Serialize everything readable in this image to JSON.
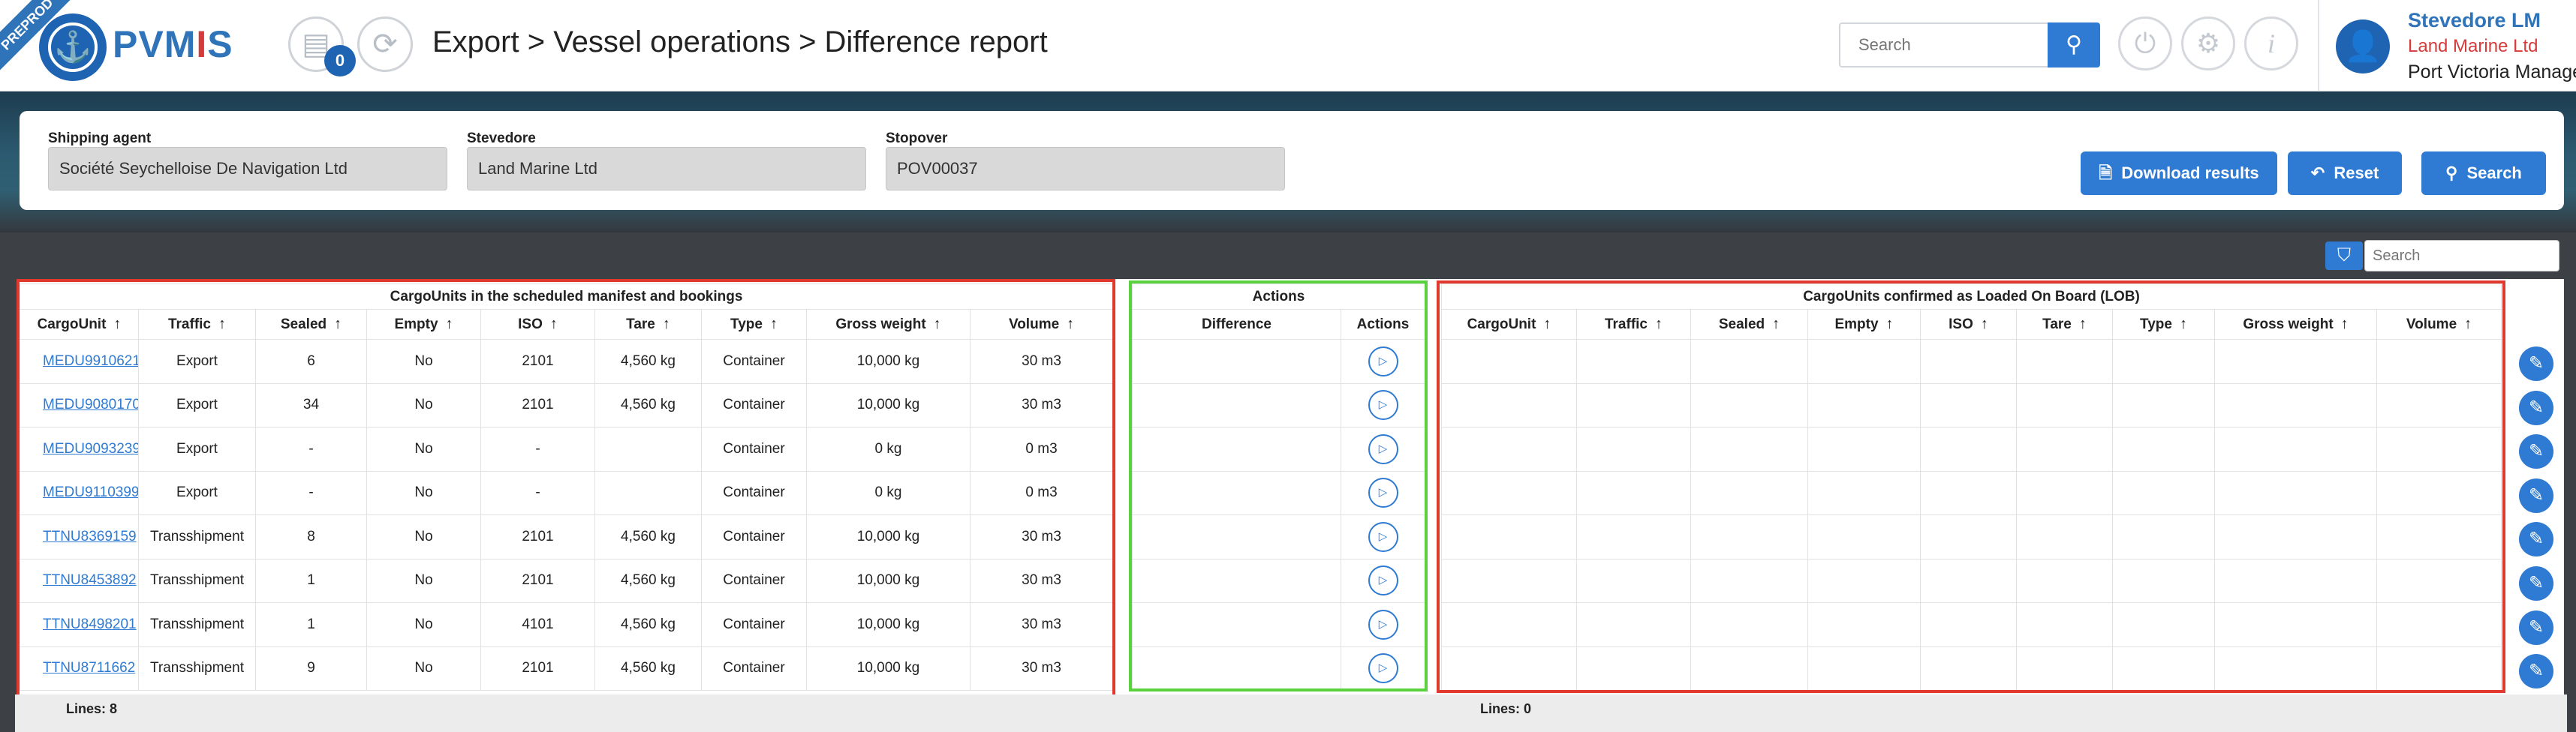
{
  "header": {
    "env_ribbon": "PREPROD",
    "brand_pre": "PVM",
    "brand_mid": "I",
    "brand_post": "S",
    "notification_count": "0",
    "breadcrumb": "Export > Vessel operations > Difference report",
    "search_placeholder": "Search",
    "user_name": "Stevedore LM",
    "user_company": "Land Marine Ltd",
    "user_org": "Port Victoria Managem"
  },
  "filters": {
    "shipping_agent_label": "Shipping agent",
    "shipping_agent_value": "Société Seychelloise De Navigation Ltd",
    "stevedore_label": "Stevedore",
    "stevedore_value": "Land Marine Ltd",
    "stopover_label": "Stopover",
    "stopover_value": "POV00037",
    "download_label": "Download results",
    "reset_label": "Reset",
    "search_label": "Search"
  },
  "table_search_placeholder": "Search",
  "left_table": {
    "group_title": "CargoUnits in the scheduled manifest and bookings",
    "columns": [
      "CargoUnit",
      "Traffic",
      "Sealed",
      "Empty",
      "ISO",
      "Tare",
      "Type",
      "Gross weight",
      "Volume"
    ],
    "rows": [
      [
        "MEDU9910621",
        "Export",
        "6",
        "No",
        "2101",
        "4,560 kg",
        "Container",
        "10,000 kg",
        "30 m3"
      ],
      [
        "MEDU9080170",
        "Export",
        "34",
        "No",
        "2101",
        "4,560 kg",
        "Container",
        "10,000 kg",
        "30 m3"
      ],
      [
        "MEDU9093239",
        "Export",
        "-",
        "No",
        "-",
        "",
        "Container",
        "0 kg",
        "0 m3"
      ],
      [
        "MEDU9110399",
        "Export",
        "-",
        "No",
        "-",
        "",
        "Container",
        "0 kg",
        "0 m3"
      ],
      [
        "TTNU8369159",
        "Transshipment",
        "8",
        "No",
        "2101",
        "4,560 kg",
        "Container",
        "10,000 kg",
        "30 m3"
      ],
      [
        "TTNU8453892",
        "Transshipment",
        "1",
        "No",
        "2101",
        "4,560 kg",
        "Container",
        "10,000 kg",
        "30 m3"
      ],
      [
        "TTNU8498201",
        "Transshipment",
        "1",
        "No",
        "4101",
        "4,560 kg",
        "Container",
        "10,000 kg",
        "30 m3"
      ],
      [
        "TTNU8711662",
        "Transshipment",
        "9",
        "No",
        "2101",
        "4,560 kg",
        "Container",
        "10,000 kg",
        "30 m3"
      ]
    ],
    "lines_label": "Lines: 8"
  },
  "actions_table": {
    "group_title": "Actions",
    "columns": [
      "Difference",
      "Actions"
    ]
  },
  "right_table": {
    "group_title": "CargoUnits confirmed as Loaded On Board (LOB)",
    "columns": [
      "CargoUnit",
      "Traffic",
      "Sealed",
      "Empty",
      "ISO",
      "Tare",
      "Type",
      "Gross weight",
      "Volume"
    ],
    "lines_label": "Lines: 0"
  },
  "icons": {
    "arrow": "arrow-up-icon",
    "play": "play-icon",
    "edit": "edit-icon"
  },
  "colors": {
    "primary": "#2f7bd4",
    "brand": "#2f73b8",
    "accent_red": "#d63b3b",
    "highlight_red": "#e03a2f",
    "highlight_green": "#5ad23d"
  }
}
